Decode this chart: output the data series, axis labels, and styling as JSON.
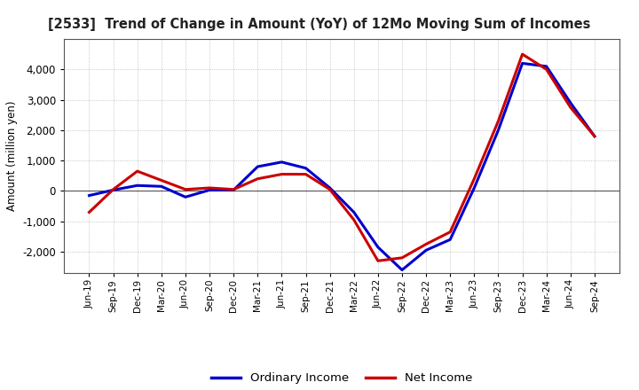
{
  "title": "[2533]  Trend of Change in Amount (YoY) of 12Mo Moving Sum of Incomes",
  "ylabel": "Amount (million yen)",
  "background_color": "#ffffff",
  "grid_color": "#999999",
  "x_labels": [
    "Jun-19",
    "Sep-19",
    "Dec-19",
    "Mar-20",
    "Jun-20",
    "Sep-20",
    "Dec-20",
    "Mar-21",
    "Jun-21",
    "Sep-21",
    "Dec-21",
    "Mar-22",
    "Jun-22",
    "Sep-22",
    "Dec-22",
    "Mar-23",
    "Jun-23",
    "Sep-23",
    "Dec-23",
    "Mar-24",
    "Jun-24",
    "Sep-24"
  ],
  "ordinary_income": [
    -150,
    30,
    180,
    150,
    -200,
    30,
    30,
    800,
    950,
    750,
    100,
    -700,
    -1850,
    -2600,
    -1950,
    -1600,
    100,
    2000,
    4200,
    4100,
    2900,
    1800
  ],
  "net_income": [
    -700,
    50,
    650,
    350,
    50,
    100,
    50,
    400,
    550,
    550,
    50,
    -950,
    -2300,
    -2200,
    -1750,
    -1350,
    400,
    2300,
    4500,
    4000,
    2750,
    1800
  ],
  "ordinary_color": "#0000cc",
  "net_color": "#cc0000",
  "ylim": [
    -2700,
    5000
  ],
  "yticks": [
    -2000,
    -1000,
    0,
    1000,
    2000,
    3000,
    4000
  ],
  "line_width": 2.2
}
